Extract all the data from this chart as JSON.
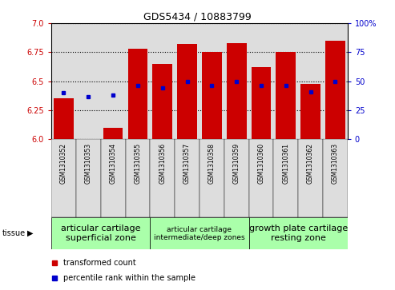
{
  "title": "GDS5434 / 10883799",
  "samples": [
    "GSM1310352",
    "GSM1310353",
    "GSM1310354",
    "GSM1310355",
    "GSM1310356",
    "GSM1310357",
    "GSM1310358",
    "GSM1310359",
    "GSM1310360",
    "GSM1310361",
    "GSM1310362",
    "GSM1310363"
  ],
  "transformed_count": [
    6.35,
    6.0,
    6.1,
    6.78,
    6.65,
    6.82,
    6.75,
    6.83,
    6.62,
    6.75,
    6.48,
    6.85
  ],
  "percentile_rank": [
    40,
    37,
    38,
    46,
    44,
    50,
    46,
    50,
    46,
    46,
    41,
    50
  ],
  "ylim_left": [
    6.0,
    7.0
  ],
  "ylim_right": [
    0,
    100
  ],
  "yticks_left": [
    6.0,
    6.25,
    6.5,
    6.75,
    7.0
  ],
  "yticks_right": [
    0,
    25,
    50,
    75,
    100
  ],
  "bar_color": "#cc0000",
  "dot_color": "#0000cc",
  "tissue_groups": [
    {
      "label": "articular cartilage\nsuperficial zone",
      "start": 0,
      "end": 4,
      "color": "#aaffaa",
      "fontsize": 8
    },
    {
      "label": "articular cartilage\nintermediate/deep zones",
      "start": 4,
      "end": 8,
      "color": "#aaffaa",
      "fontsize": 6.5
    },
    {
      "label": "growth plate cartilage\nresting zone",
      "start": 8,
      "end": 12,
      "color": "#aaffaa",
      "fontsize": 8
    }
  ],
  "tissue_label": "tissue",
  "legend_red_label": "transformed count",
  "legend_blue_label": "percentile rank within the sample",
  "left_axis_color": "#cc0000",
  "right_axis_color": "#0000cc",
  "col_bg_color": "#dddddd",
  "plot_bg_color": "#ffffff"
}
